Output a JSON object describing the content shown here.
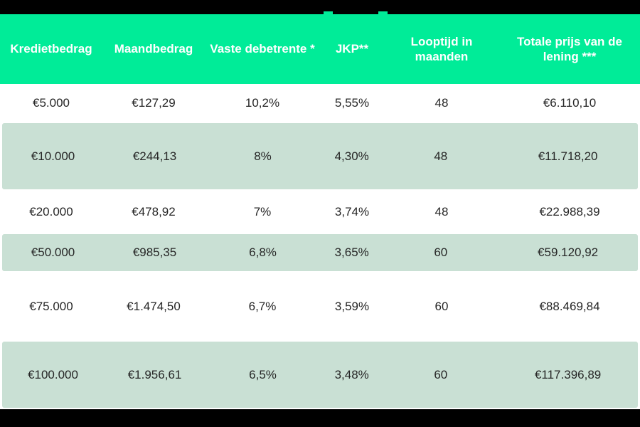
{
  "colors": {
    "header_green": "#00EC98",
    "row_sage": "#C9E0D4",
    "bar_black": "#000000",
    "header_text": "#FFFFFF",
    "cell_text": "#262626"
  },
  "chart_data": {
    "type": "table",
    "columns": [
      "Kredietbedrag",
      "Maandbedrag",
      "Vaste debetrente *",
      "JKP**",
      "Looptijd in maanden",
      "Totale prijs van de lening ***"
    ],
    "rows": [
      [
        "€5.000",
        "€127,29",
        "10,2%",
        "5,55%",
        "48",
        "€6.110,10"
      ],
      [
        "€10.000",
        "€244,13",
        "8%",
        "4,30%",
        "48",
        "€11.718,20"
      ],
      [
        "€20.000",
        "€478,92",
        "7%",
        "3,74%",
        "48",
        "€22.988,39"
      ],
      [
        "€50.000",
        "€985,35",
        "6,8%",
        "3,65%",
        "60",
        "€59.120,92"
      ],
      [
        "€75.000",
        "€1.474,50",
        "6,7%",
        "3,59%",
        "60",
        "€88.469,84"
      ],
      [
        "€100.000",
        "€1.956,61",
        "6,5%",
        "3,48%",
        "60",
        "€117.396,89"
      ]
    ]
  }
}
